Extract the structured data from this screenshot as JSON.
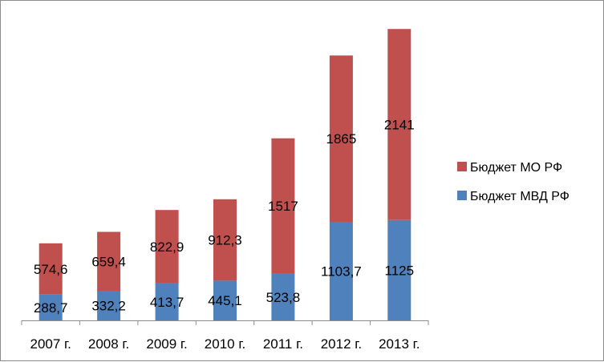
{
  "chart_data": {
    "type": "bar",
    "stacked": true,
    "categories": [
      "2007 г.",
      "2008 г.",
      "2009 г.",
      "2010 г.",
      "2011 г.",
      "2012 г.",
      "2013 г."
    ],
    "series": [
      {
        "name": "Бюджет МВД РФ",
        "color": "#4f81bd",
        "values": [
          288.7,
          332.2,
          413.7,
          445.1,
          523.8,
          1103.7,
          1125
        ],
        "labels": [
          "288,7",
          "332,2",
          "413,7",
          "445,1",
          "523,8",
          "1103,7",
          "1125"
        ]
      },
      {
        "name": "Бюджет МО РФ",
        "color": "#c0504d",
        "values": [
          574.6,
          659.4,
          822.9,
          912.3,
          1517,
          1865,
          2141
        ],
        "labels": [
          "574,6",
          "659,4",
          "822,9",
          "912,3",
          "1517",
          "1865",
          "2141"
        ]
      }
    ],
    "ylim": [
      0,
      3500
    ],
    "grid": false,
    "legend_position": "right",
    "legend_order": [
      "Бюджет МО РФ",
      "Бюджет МВД РФ"
    ]
  }
}
